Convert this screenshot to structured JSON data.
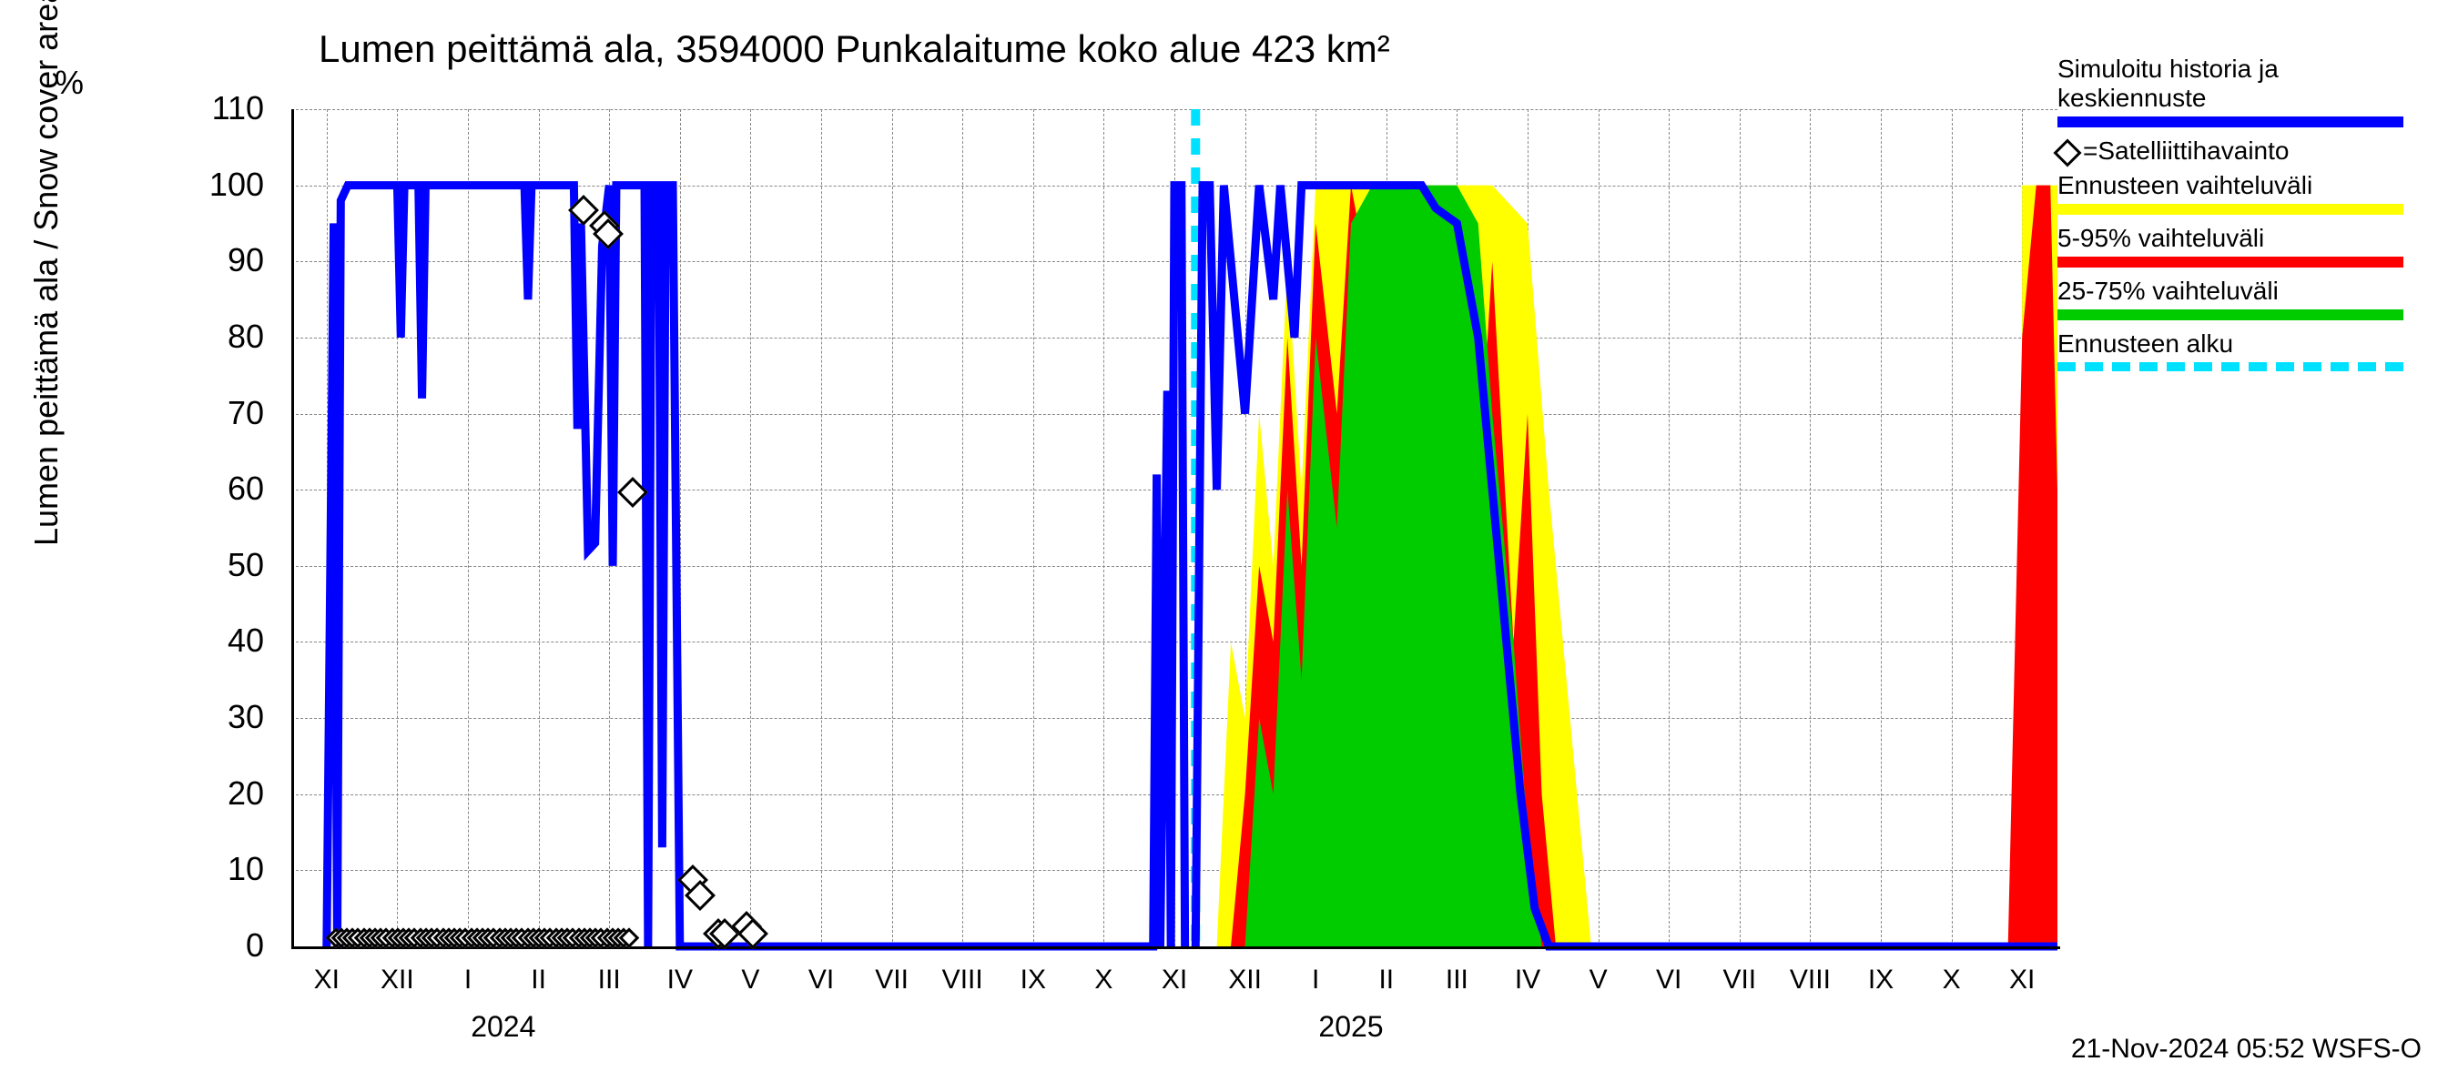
{
  "chart": {
    "type": "line-area-timeseries",
    "title": "Lumen peittämä ala, 3594000 Punkalaitume koko alue 423 km²",
    "ylabel": "Lumen peittämä ala / Snow cover area",
    "yunit": "%",
    "ylim": [
      0,
      110
    ],
    "ytick_step": 10,
    "yticks": [
      0,
      10,
      20,
      30,
      40,
      50,
      60,
      70,
      80,
      90,
      100,
      110
    ],
    "xticks_roman": [
      "XI",
      "XII",
      "I",
      "II",
      "III",
      "IV",
      "V",
      "VI",
      "VII",
      "VIII",
      "IX",
      "X",
      "XI",
      "XII",
      "I",
      "II",
      "III",
      "IV",
      "V",
      "VI",
      "VII",
      "VIII",
      "IX",
      "X",
      "XI"
    ],
    "year_labels": [
      {
        "text": "2024",
        "pos_index": 2.5
      },
      {
        "text": "2025",
        "pos_index": 14.5
      }
    ],
    "background_color": "#ffffff",
    "grid_color": "#888888",
    "axis_color": "#000000",
    "title_fontsize": 42,
    "label_fontsize": 36,
    "tick_fontsize": 32,
    "colors": {
      "sim_line": "#0000ff",
      "satellite_marker": "#000000",
      "forecast_range_outer": "#ffff00",
      "forecast_range_5_95": "#ff0000",
      "forecast_range_25_75": "#00cc00",
      "forecast_start": "#00e0ff"
    },
    "forecast_start_index": 12.3,
    "satellite_points": [
      {
        "x": 3.6,
        "y": 95
      },
      {
        "x": 3.9,
        "y": 93
      },
      {
        "x": 3.95,
        "y": 92
      },
      {
        "x": 4.3,
        "y": 58
      },
      {
        "x": 5.15,
        "y": 7
      },
      {
        "x": 5.25,
        "y": 5
      },
      {
        "x": 5.5,
        "y": 0
      },
      {
        "x": 5.6,
        "y": 0
      },
      {
        "x": 5.9,
        "y": 1
      },
      {
        "x": 6.0,
        "y": 0
      }
    ],
    "sim_line_segments": [
      [
        [
          0.0,
          0
        ],
        [
          0.1,
          95
        ],
        [
          0.15,
          0
        ],
        [
          0.2,
          98
        ],
        [
          0.3,
          100
        ],
        [
          1.0,
          100
        ],
        [
          1.05,
          80
        ],
        [
          1.1,
          100
        ],
        [
          1.3,
          100
        ],
        [
          1.35,
          72
        ],
        [
          1.4,
          100
        ],
        [
          2.8,
          100
        ],
        [
          2.85,
          85
        ],
        [
          2.9,
          100
        ],
        [
          3.5,
          100
        ],
        [
          3.55,
          68
        ],
        [
          3.6,
          95
        ],
        [
          3.7,
          52
        ],
        [
          3.8,
          53
        ],
        [
          3.9,
          92
        ],
        [
          4.0,
          100
        ],
        [
          4.05,
          50
        ],
        [
          4.1,
          100
        ],
        [
          4.5,
          100
        ],
        [
          4.55,
          0
        ],
        [
          4.6,
          100
        ],
        [
          4.7,
          100
        ],
        [
          4.75,
          13
        ],
        [
          4.8,
          100
        ],
        [
          4.9,
          100
        ],
        [
          5.0,
          0
        ],
        [
          5.9,
          0
        ],
        [
          6.0,
          0
        ],
        [
          11.7,
          0
        ],
        [
          11.75,
          62
        ],
        [
          11.8,
          0
        ],
        [
          11.9,
          73
        ],
        [
          11.95,
          0
        ],
        [
          12.0,
          100
        ],
        [
          12.1,
          100
        ],
        [
          12.15,
          0
        ]
      ],
      [
        [
          12.3,
          0
        ],
        [
          12.4,
          100
        ],
        [
          12.5,
          100
        ],
        [
          12.6,
          60
        ],
        [
          12.7,
          100
        ],
        [
          13.0,
          70
        ],
        [
          13.2,
          100
        ],
        [
          13.4,
          85
        ],
        [
          13.5,
          100
        ],
        [
          13.7,
          80
        ],
        [
          13.8,
          100
        ],
        [
          14.5,
          100
        ],
        [
          14.7,
          100
        ],
        [
          15.5,
          100
        ],
        [
          15.7,
          97
        ],
        [
          16.0,
          95
        ],
        [
          16.3,
          80
        ],
        [
          16.5,
          60
        ],
        [
          16.7,
          40
        ],
        [
          16.9,
          20
        ],
        [
          17.1,
          5
        ],
        [
          17.3,
          0
        ],
        [
          24.5,
          0
        ]
      ]
    ],
    "forecast_bands": {
      "outer_yellow": [
        [
          [
            12.6,
            0
          ],
          [
            12.8,
            40
          ],
          [
            13.0,
            30
          ],
          [
            13.2,
            70
          ],
          [
            13.4,
            50
          ],
          [
            13.6,
            90
          ],
          [
            13.8,
            60
          ],
          [
            14.0,
            100
          ],
          [
            14.5,
            100
          ],
          [
            15.5,
            100
          ],
          [
            16.0,
            100
          ],
          [
            16.5,
            100
          ],
          [
            17.0,
            95
          ],
          [
            17.3,
            60
          ],
          [
            17.6,
            30
          ],
          [
            17.9,
            0
          ],
          [
            24.0,
            0
          ],
          [
            24.0,
            100
          ],
          [
            24.2,
            100
          ],
          [
            24.5,
            100
          ],
          [
            24.5,
            0
          ]
        ],
        [
          [
            12.6,
            0
          ],
          [
            17.9,
            0
          ],
          [
            24.0,
            0
          ],
          [
            24.5,
            0
          ]
        ]
      ],
      "red_5_95": [
        [
          [
            12.8,
            0
          ],
          [
            13.0,
            20
          ],
          [
            13.2,
            50
          ],
          [
            13.4,
            40
          ],
          [
            13.6,
            80
          ],
          [
            13.8,
            50
          ],
          [
            14.0,
            95
          ],
          [
            14.3,
            70
          ],
          [
            14.5,
            100
          ],
          [
            14.8,
            85
          ],
          [
            15.0,
            100
          ],
          [
            15.3,
            80
          ],
          [
            15.5,
            100
          ],
          [
            15.8,
            70
          ],
          [
            16.0,
            95
          ],
          [
            16.3,
            60
          ],
          [
            16.5,
            90
          ],
          [
            16.8,
            40
          ],
          [
            17.0,
            70
          ],
          [
            17.2,
            20
          ],
          [
            17.4,
            0
          ],
          [
            23.8,
            0
          ],
          [
            24.0,
            80
          ],
          [
            24.2,
            100
          ],
          [
            24.4,
            100
          ],
          [
            24.5,
            60
          ],
          [
            24.5,
            0
          ]
        ],
        [
          [
            12.8,
            0
          ],
          [
            17.4,
            0
          ],
          [
            24.5,
            0
          ]
        ]
      ],
      "green_25_75": [
        [
          [
            13.0,
            0
          ],
          [
            13.2,
            30
          ],
          [
            13.4,
            20
          ],
          [
            13.6,
            60
          ],
          [
            13.8,
            35
          ],
          [
            14.0,
            80
          ],
          [
            14.3,
            55
          ],
          [
            14.5,
            95
          ],
          [
            14.8,
            100
          ],
          [
            15.5,
            100
          ],
          [
            15.8,
            100
          ],
          [
            16.0,
            100
          ],
          [
            16.3,
            95
          ],
          [
            16.5,
            70
          ],
          [
            16.8,
            40
          ],
          [
            17.0,
            15
          ],
          [
            17.2,
            0
          ],
          [
            24.5,
            0
          ],
          [
            24.5,
            20
          ],
          [
            24.5,
            0
          ]
        ],
        [
          [
            13.0,
            0
          ],
          [
            17.2,
            0
          ],
          [
            24.5,
            0
          ]
        ]
      ]
    }
  },
  "legend": {
    "items": [
      {
        "label": "Simuloitu historia ja keskiennuste",
        "type": "line",
        "color": "#0000ff"
      },
      {
        "label": "=Satelliittihavainto",
        "type": "marker",
        "color": "#000000"
      },
      {
        "label": "Ennusteen vaihteluväli",
        "type": "bar",
        "color": "#ffff00"
      },
      {
        "label": "5-95% vaihteluväli",
        "type": "bar",
        "color": "#ff0000"
      },
      {
        "label": "25-75% vaihteluväli",
        "type": "bar",
        "color": "#00cc00"
      },
      {
        "label": "Ennusteen alku",
        "type": "dashed",
        "color": "#00e0ff"
      }
    ]
  },
  "footer": "21-Nov-2024 05:52 WSFS-O"
}
